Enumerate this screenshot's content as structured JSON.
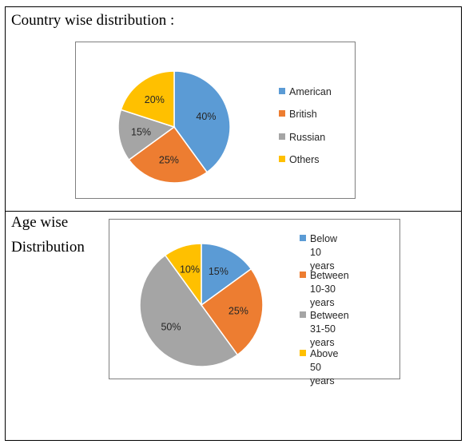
{
  "sections": {
    "country": {
      "title": "Country wise distribution :"
    },
    "age": {
      "title_line1": "Age wise",
      "title_line2": "Distribution"
    }
  },
  "chart_data": [
    {
      "type": "pie",
      "categories": [
        "American",
        "British",
        "Russian",
        "Others"
      ],
      "values": [
        40,
        25,
        15,
        20
      ],
      "labels": [
        "40%",
        "25%",
        "15%",
        "20%"
      ],
      "colors": [
        "#5b9bd5",
        "#ed7d31",
        "#a5a5a5",
        "#ffc000"
      ],
      "title": "",
      "legend": "right"
    },
    {
      "type": "pie",
      "categories": [
        "Below 10 years",
        "Between 10-30 years",
        "Between 31-50 years",
        "Above 50 years"
      ],
      "values": [
        15,
        25,
        50,
        10
      ],
      "labels": [
        "15%",
        "25%",
        "50%",
        "10%"
      ],
      "colors": [
        "#5b9bd5",
        "#ed7d31",
        "#a5a5a5",
        "#ffc000"
      ],
      "title": "",
      "legend": "right"
    }
  ],
  "legends": {
    "country": [
      "American",
      "British",
      "Russian",
      "Others"
    ],
    "age": [
      [
        "Below 10 years"
      ],
      [
        "Between 10-30",
        "years"
      ],
      [
        "Between 31-50",
        "years"
      ],
      [
        "Above 50 years"
      ]
    ]
  }
}
